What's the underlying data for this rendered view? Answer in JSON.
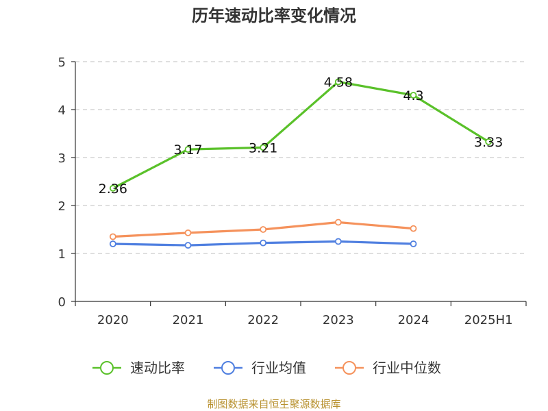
{
  "chart_data": {
    "type": "line",
    "title": "历年速动比率变化情况",
    "categories": [
      "2020",
      "2021",
      "2022",
      "2023",
      "2024",
      "2025H1"
    ],
    "ylim": [
      0,
      5
    ],
    "yticks": [
      "0",
      "1",
      "2",
      "3",
      "4",
      "5"
    ],
    "grid": true,
    "legend_position": "bottom",
    "series": [
      {
        "name": "速动比率",
        "color": "#5ac12a",
        "values": [
          2.36,
          3.17,
          3.21,
          4.58,
          4.3,
          3.33
        ],
        "labels": [
          "2.36",
          "3.17",
          "3.21",
          "4.58",
          "4.3",
          "3.33"
        ]
      },
      {
        "name": "行业均值",
        "color": "#4f7fe0",
        "values": [
          1.2,
          1.17,
          1.22,
          1.25,
          1.2,
          null
        ]
      },
      {
        "name": "行业中位数",
        "color": "#f5925c",
        "values": [
          1.35,
          1.43,
          1.5,
          1.65,
          1.52,
          null
        ]
      }
    ],
    "source": "制图数据来自恒生聚源数据库"
  }
}
